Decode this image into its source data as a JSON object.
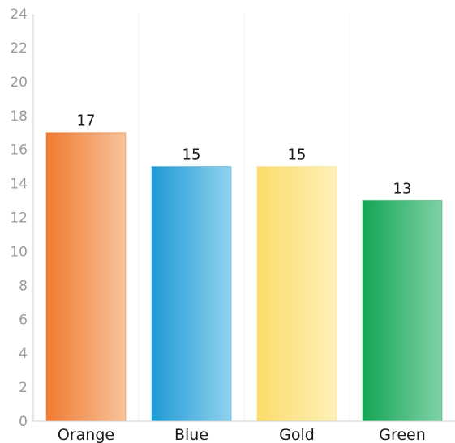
{
  "chart_data": {
    "type": "bar",
    "categories": [
      "Orange",
      "Blue",
      "Gold",
      "Green"
    ],
    "values": [
      17,
      15,
      15,
      13
    ],
    "data_labels": [
      "17",
      "15",
      "15",
      "13"
    ],
    "ylim": [
      0,
      24
    ],
    "y_ticks": [
      "0",
      "2",
      "4",
      "6",
      "8",
      "10",
      "12",
      "14",
      "16",
      "18",
      "20",
      "22",
      "24"
    ],
    "grid": false,
    "legend": "none",
    "colors": [
      {
        "dark": "#f07a30",
        "light": "#f8c39a"
      },
      {
        "dark": "#1e9ad6",
        "light": "#90d2ee"
      },
      {
        "dark": "#fbdc6a",
        "light": "#fdf0b8"
      },
      {
        "dark": "#13a555",
        "light": "#7fd2a6"
      }
    ]
  }
}
